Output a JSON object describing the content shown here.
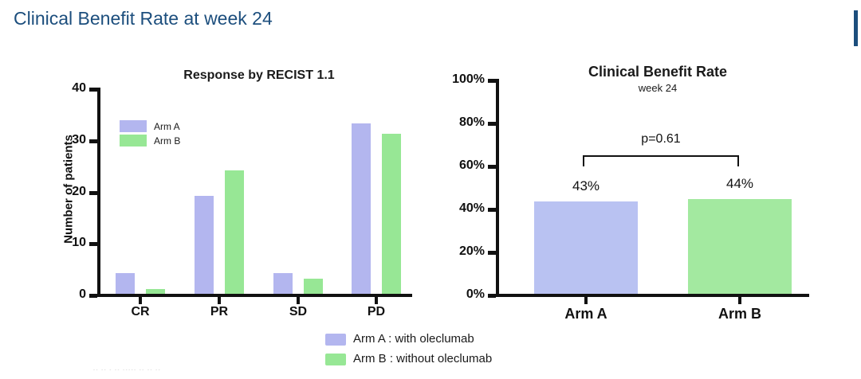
{
  "slide": {
    "title": "Clinical Benefit Rate at week 24",
    "accent_color": "#1c4e7d",
    "watermark": "-- -- - -- ----- -- -- --"
  },
  "colors": {
    "arm_a": "#b3b6ef",
    "arm_b": "#97e795",
    "arm_a_right_bar": "#b9c2f2",
    "arm_b_right_bar": "#a3e9a0",
    "axis": "#111111",
    "title_navy": "#1c4e7d"
  },
  "chart_data": [
    {
      "type": "bar",
      "title": "Response by RECIST 1.1",
      "xlabel": "",
      "ylabel": "Number of patients",
      "categories": [
        "CR",
        "PR",
        "SD",
        "PD"
      ],
      "series": [
        {
          "name": "Arm A",
          "color": "#b3b6ef",
          "values": [
            4,
            19,
            4,
            33
          ]
        },
        {
          "name": "Arm B",
          "color": "#97e795",
          "values": [
            1,
            24,
            3,
            31
          ]
        }
      ],
      "ylim": [
        0,
        40
      ],
      "yticks": [
        0,
        10,
        20,
        30,
        40
      ],
      "grid": false,
      "legend_position": "inside-top-left"
    },
    {
      "type": "bar",
      "title": "Clinical Benefit Rate",
      "subtitle": "week 24",
      "xlabel": "",
      "ylabel": "",
      "categories": [
        "Arm A",
        "Arm B"
      ],
      "values": [
        43,
        44
      ],
      "bar_labels": [
        "43%",
        "44%"
      ],
      "bar_colors": [
        "#b9c2f2",
        "#a3e9a0"
      ],
      "annotation": "p=0.61",
      "ylim": [
        0,
        100
      ],
      "ytick_labels": [
        "0%",
        "20%",
        "40%",
        "60%",
        "80%",
        "100%"
      ],
      "yticks": [
        0,
        20,
        40,
        60,
        80,
        100
      ],
      "grid": false
    }
  ],
  "bottom_legend": {
    "items": [
      {
        "label": "Arm A : with oleclumab",
        "color": "#b3b6ef"
      },
      {
        "label": "Arm B : without oleclumab",
        "color": "#97e795"
      }
    ]
  }
}
